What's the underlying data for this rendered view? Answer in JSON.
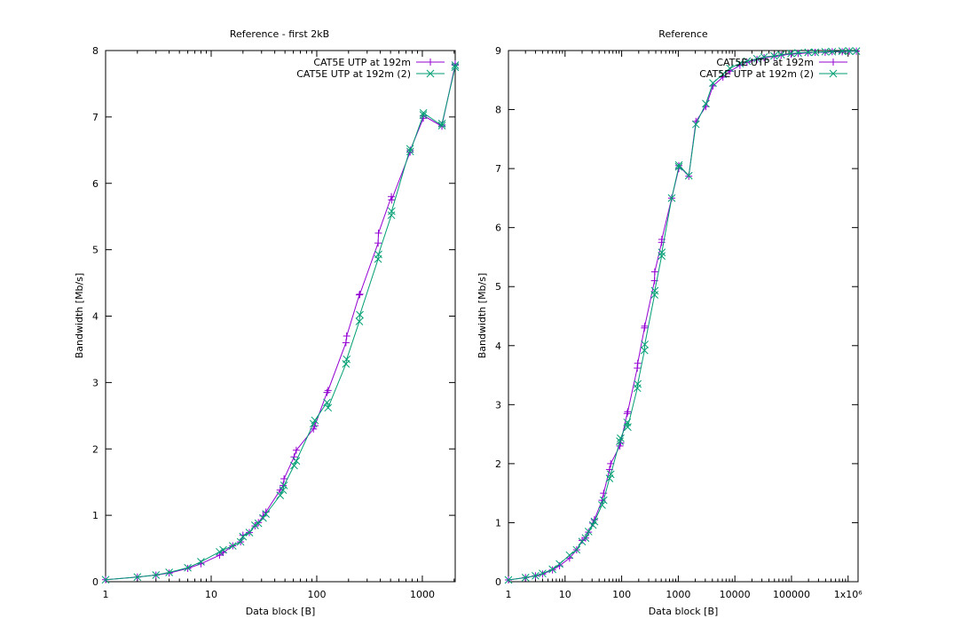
{
  "chart_data": [
    {
      "type": "line",
      "title": "Reference - first 2kB",
      "xlabel": "Data block [B]",
      "ylabel": "Bandwidth [Mb/s]",
      "xscale": "log",
      "xlim": [
        1,
        2048
      ],
      "ylim": [
        0,
        8
      ],
      "legend_position": "top-right",
      "xticks": [
        {
          "v": 1,
          "label": "1"
        },
        {
          "v": 10,
          "label": "10"
        },
        {
          "v": 100,
          "label": "100"
        },
        {
          "v": 1000,
          "label": "1000"
        }
      ],
      "yticks": [
        {
          "v": 0,
          "label": "0"
        },
        {
          "v": 1,
          "label": "1"
        },
        {
          "v": 2,
          "label": "2"
        },
        {
          "v": 3,
          "label": "3"
        },
        {
          "v": 4,
          "label": "4"
        },
        {
          "v": 5,
          "label": "5"
        },
        {
          "v": 6,
          "label": "6"
        },
        {
          "v": 7,
          "label": "7"
        },
        {
          "v": 8,
          "label": "8"
        }
      ],
      "series": [
        {
          "name": "CAT5E UTP at 192m",
          "color": "#9400d3",
          "marker": "plus",
          "x": [
            1,
            2,
            3,
            4,
            6,
            8,
            12,
            13,
            16,
            19,
            20,
            23,
            26,
            28,
            31,
            33,
            45,
            48,
            49,
            61,
            64,
            93,
            96,
            125,
            128,
            189,
            192,
            253,
            256,
            381,
            384,
            509,
            512,
            765,
            768,
            1021,
            1024,
            1533,
            1536,
            2045,
            2048
          ],
          "y": [
            0.03,
            0.07,
            0.1,
            0.13,
            0.2,
            0.27,
            0.4,
            0.44,
            0.54,
            0.6,
            0.7,
            0.74,
            0.84,
            0.89,
            0.99,
            1.05,
            1.38,
            1.45,
            1.55,
            1.88,
            1.98,
            2.3,
            2.35,
            2.85,
            2.88,
            3.6,
            3.7,
            4.32,
            4.33,
            5.1,
            5.25,
            5.8,
            5.75,
            6.47,
            6.5,
            6.98,
            7.02,
            6.86,
            6.88,
            7.78,
            7.8
          ]
        },
        {
          "name": "CAT5E UTP at 192m (2)",
          "color": "#009e73",
          "marker": "cross",
          "x": [
            1,
            2,
            3,
            4,
            6,
            8,
            12,
            13,
            16,
            19,
            20,
            23,
            26,
            28,
            31,
            33,
            45,
            48,
            49,
            61,
            64,
            93,
            96,
            125,
            128,
            189,
            192,
            253,
            256,
            381,
            384,
            509,
            512,
            765,
            768,
            1021,
            1024,
            1533,
            1536,
            2045,
            2048
          ],
          "y": [
            0.03,
            0.07,
            0.1,
            0.14,
            0.21,
            0.3,
            0.45,
            0.48,
            0.54,
            0.6,
            0.68,
            0.74,
            0.85,
            0.88,
            0.96,
            1.02,
            1.3,
            1.38,
            1.45,
            1.75,
            1.82,
            2.38,
            2.43,
            2.7,
            2.62,
            3.28,
            3.35,
            3.92,
            4.02,
            4.86,
            4.93,
            5.52,
            5.58,
            6.52,
            6.48,
            7.03,
            7.06,
            6.87,
            6.9,
            7.75,
            7.78
          ]
        }
      ]
    },
    {
      "type": "line",
      "title": "Reference",
      "xlabel": "Data block [B]",
      "ylabel": "Bandwidth [Mb/s]",
      "xscale": "log",
      "xlim": [
        1,
        1500000
      ],
      "ylim": [
        0,
        9
      ],
      "legend_position": "top-right",
      "xticks": [
        {
          "v": 1,
          "label": "1"
        },
        {
          "v": 10,
          "label": "10"
        },
        {
          "v": 100,
          "label": "100"
        },
        {
          "v": 1000,
          "label": "1000"
        },
        {
          "v": 10000,
          "label": "10000"
        },
        {
          "v": 100000,
          "label": "100000"
        },
        {
          "v": 1000000,
          "label": "1x10⁶"
        }
      ],
      "yticks": [
        {
          "v": 0,
          "label": "0"
        },
        {
          "v": 1,
          "label": "1"
        },
        {
          "v": 2,
          "label": "2"
        },
        {
          "v": 3,
          "label": "3"
        },
        {
          "v": 4,
          "label": "4"
        },
        {
          "v": 5,
          "label": "5"
        },
        {
          "v": 6,
          "label": "6"
        },
        {
          "v": 7,
          "label": "7"
        },
        {
          "v": 8,
          "label": "8"
        },
        {
          "v": 9,
          "label": "9"
        }
      ],
      "series": [
        {
          "name": "CAT5E UTP at 192m",
          "color": "#9400d3",
          "marker": "plus",
          "x": [
            1,
            2,
            3,
            4,
            6,
            8,
            12,
            16,
            20,
            23,
            26,
            31,
            33,
            45,
            48,
            61,
            64,
            93,
            96,
            125,
            128,
            189,
            192,
            253,
            256,
            381,
            384,
            509,
            512,
            765,
            1021,
            1024,
            1533,
            2048,
            3072,
            4096,
            6144,
            8192,
            12288,
            16384,
            24576,
            32768,
            49152,
            65536,
            98304,
            131072,
            196608,
            262144,
            393216,
            524288,
            786432,
            1048576,
            1400000
          ],
          "y": [
            0.03,
            0.07,
            0.1,
            0.13,
            0.2,
            0.27,
            0.4,
            0.54,
            0.7,
            0.74,
            0.84,
            0.99,
            1.05,
            1.38,
            1.5,
            1.9,
            2.0,
            2.3,
            2.35,
            2.85,
            2.88,
            3.62,
            3.7,
            4.3,
            4.33,
            5.1,
            5.25,
            5.75,
            5.8,
            6.5,
            7.0,
            7.05,
            6.87,
            7.8,
            8.05,
            8.4,
            8.55,
            8.65,
            8.75,
            8.8,
            8.85,
            8.88,
            8.9,
            8.92,
            8.94,
            8.95,
            8.96,
            8.97,
            8.97,
            8.98,
            8.98,
            8.99,
            8.99
          ]
        },
        {
          "name": "CAT5E UTP at 192m (2)",
          "color": "#009e73",
          "marker": "cross",
          "x": [
            1,
            2,
            3,
            4,
            6,
            8,
            12,
            16,
            20,
            23,
            26,
            31,
            33,
            45,
            48,
            61,
            64,
            93,
            96,
            125,
            128,
            189,
            192,
            253,
            256,
            381,
            384,
            509,
            512,
            765,
            1021,
            1024,
            1533,
            2048,
            3072,
            4096,
            6144,
            8192,
            12288,
            16384,
            24576,
            32768,
            49152,
            65536,
            98304,
            131072,
            196608,
            262144,
            393216,
            524288,
            786432,
            1048576,
            1400000
          ],
          "y": [
            0.03,
            0.07,
            0.1,
            0.14,
            0.21,
            0.3,
            0.45,
            0.54,
            0.68,
            0.74,
            0.85,
            0.96,
            1.02,
            1.3,
            1.38,
            1.75,
            1.82,
            2.38,
            2.43,
            2.7,
            2.62,
            3.28,
            3.35,
            3.92,
            4.02,
            4.86,
            4.93,
            5.52,
            5.58,
            6.5,
            7.03,
            7.06,
            6.88,
            7.75,
            8.1,
            8.45,
            8.6,
            8.7,
            8.78,
            8.82,
            8.86,
            8.89,
            8.91,
            8.93,
            8.95,
            8.96,
            8.97,
            8.97,
            8.98,
            8.98,
            8.99,
            8.99,
            8.99
          ]
        }
      ]
    }
  ]
}
